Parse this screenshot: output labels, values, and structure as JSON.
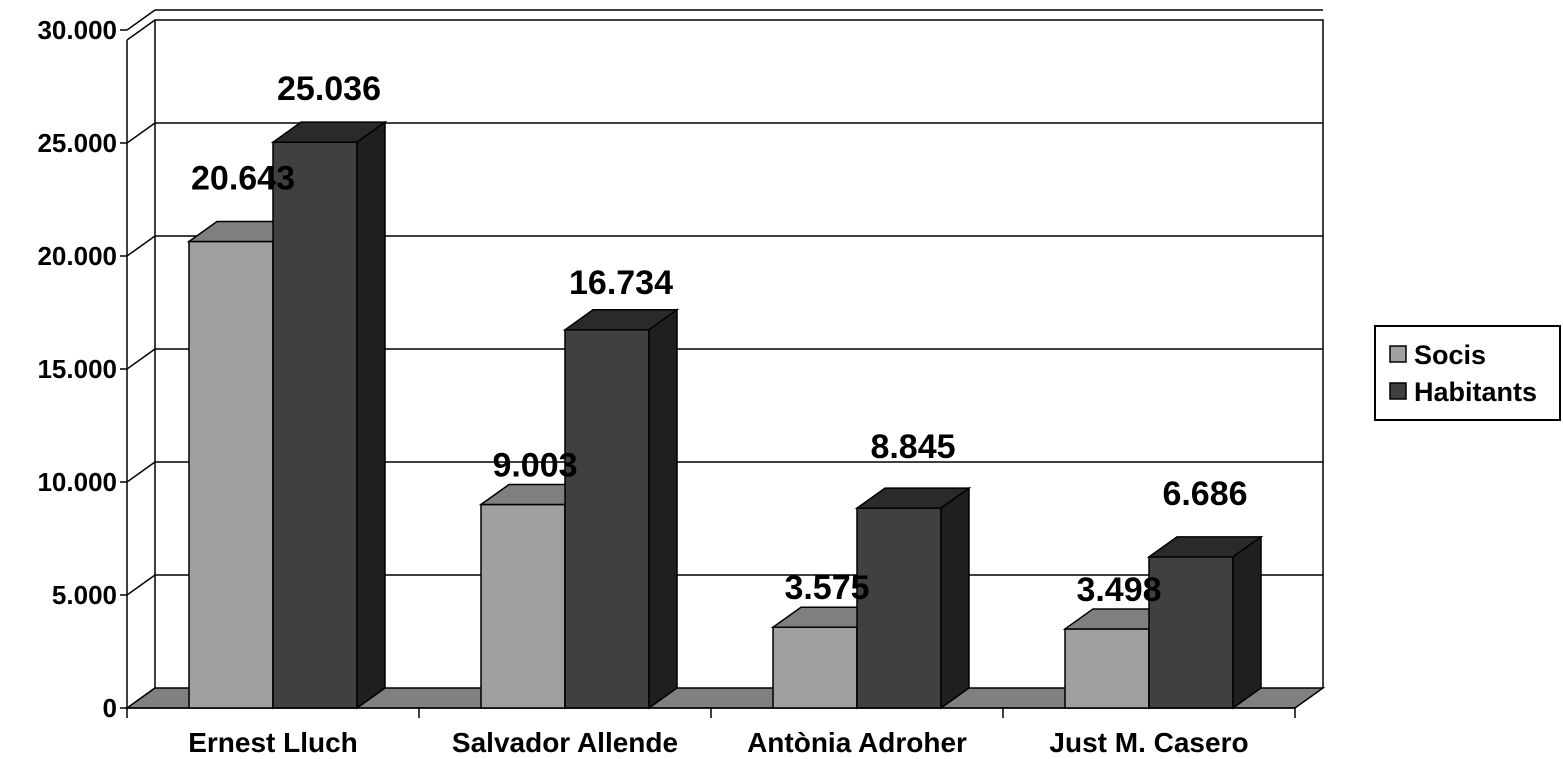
{
  "chart_data": {
    "type": "bar",
    "style": "3d-clustered-column",
    "title": "",
    "xlabel": "",
    "ylabel": "",
    "categories": [
      "Ernest Lluch",
      "Salvador Allende",
      "Antònia Adroher",
      "Just M. Casero"
    ],
    "series": [
      {
        "name": "Socis",
        "values": [
          20643,
          9003,
          3575,
          3498
        ],
        "labels": [
          "20.643",
          "9.003",
          "3.575",
          "3.498"
        ]
      },
      {
        "name": "Habitants",
        "values": [
          25036,
          16734,
          8845,
          6686
        ],
        "labels": [
          "25.036",
          "16.734",
          "8.845",
          "6.686"
        ]
      }
    ],
    "yticks": [
      0,
      5000,
      10000,
      15000,
      20000,
      25000,
      30000
    ],
    "ytick_labels": [
      "0",
      "5.000",
      "10.000",
      "15.000",
      "20.000",
      "25.000",
      "30.000"
    ],
    "ylim": [
      0,
      30000
    ],
    "grid": true,
    "legend_position": "right",
    "colors": {
      "socis_front": "#a0a0a0",
      "socis_top": "#7f7f7f",
      "socis_side": "#6a6a6a",
      "habitants_front": "#404040",
      "habitants_top": "#2a2a2a",
      "habitants_side": "#1f1f1f",
      "floor": "#808080"
    }
  }
}
